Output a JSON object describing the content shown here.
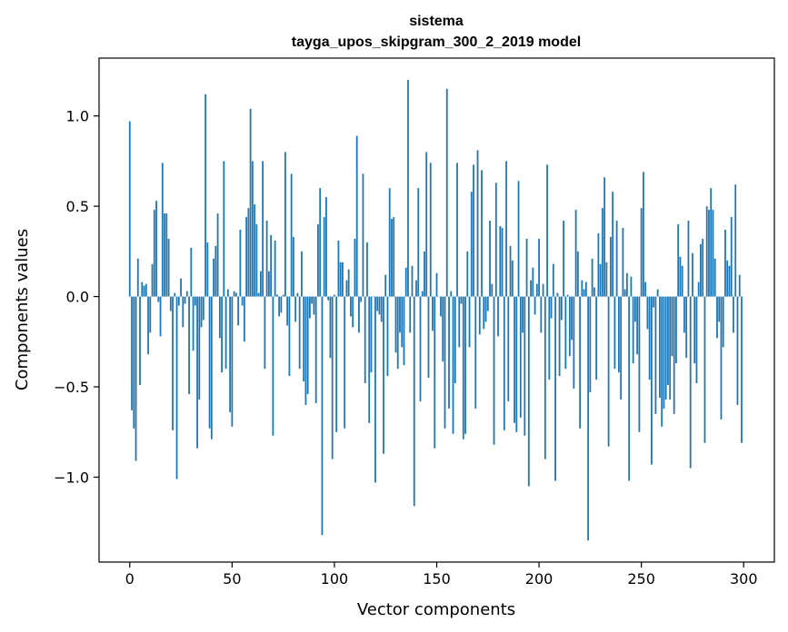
{
  "chart_data": {
    "type": "bar",
    "title": "sistema",
    "subtitle": "tayga_upos_skipgram_300_2_2019 model",
    "xlabel": "Vector components",
    "ylabel": "Components values",
    "xlim": [
      -15,
      315
    ],
    "ylim": [
      -1.47,
      1.32
    ],
    "xticks": [
      0,
      50,
      100,
      150,
      200,
      250,
      300
    ],
    "xtick_labels": [
      "0",
      "50",
      "100",
      "150",
      "200",
      "250",
      "300"
    ],
    "yticks": [
      -1.0,
      -0.5,
      0.0,
      0.5,
      1.0
    ],
    "ytick_labels": [
      "−1.0",
      "−0.5",
      "0.0",
      "0.5",
      "1.0"
    ],
    "bar_color": "#1f77b4",
    "grid": false,
    "n_components": 300,
    "values": [
      0.97,
      -0.63,
      -0.73,
      -0.91,
      0.21,
      -0.49,
      0.08,
      0.06,
      0.07,
      -0.32,
      -0.2,
      0.18,
      0.48,
      0.53,
      -0.03,
      -0.22,
      0.74,
      0.46,
      0.46,
      0.32,
      -0.08,
      -0.74,
      0.02,
      -1.01,
      -0.05,
      0.1,
      -0.17,
      -0.04,
      0.03,
      -0.54,
      0.27,
      -0.3,
      -0.05,
      -0.84,
      -0.57,
      -0.17,
      -0.13,
      1.12,
      0.3,
      -0.73,
      -0.79,
      0.21,
      0.28,
      0.46,
      -0.23,
      -0.42,
      0.75,
      -0.4,
      0.04,
      -0.64,
      -0.72,
      0.03,
      0.02,
      -0.16,
      0.37,
      -0.05,
      -0.25,
      0.44,
      0.49,
      1.04,
      0.75,
      0.51,
      0.4,
      0.02,
      0.14,
      0.75,
      -0.4,
      0.42,
      0.14,
      0.34,
      -0.77,
      0.31,
      0.01,
      -0.11,
      -0.09,
      0.01,
      0.8,
      -0.16,
      -0.44,
      0.68,
      0.33,
      -0.14,
      0.02,
      -0.4,
      0.25,
      -0.47,
      -0.6,
      -0.54,
      -0.12,
      -0.04,
      -0.1,
      -0.59,
      0.4,
      0.6,
      -1.32,
      0.44,
      0.55,
      -0.02,
      -0.34,
      -0.9,
      0.01,
      -0.75,
      0.31,
      0.19,
      0.19,
      -0.73,
      0.09,
      0.15,
      -0.11,
      -0.17,
      0.32,
      0.89,
      -0.2,
      -0.03,
      0.68,
      -0.48,
      0.3,
      -0.7,
      -0.42,
      0.0,
      -1.03,
      -0.08,
      -0.1,
      -0.14,
      -0.87,
      0.12,
      -0.44,
      0.6,
      0.43,
      0.44,
      -0.31,
      -0.4,
      -0.2,
      -0.28,
      -0.38,
      0.16,
      1.2,
      -0.2,
      0.17,
      -1.16,
      0.09,
      0.6,
      -0.58,
      0.03,
      0.25,
      0.8,
      -0.45,
      0.74,
      -0.19,
      -0.84,
      0.13,
      0.0,
      -0.11,
      -0.36,
      -0.73,
      1.15,
      -0.62,
      0.03,
      -0.76,
      -0.48,
      0.74,
      -0.28,
      -0.04,
      -0.79,
      -0.76,
      0.25,
      -0.28,
      0.58,
      0.73,
      -0.62,
      0.81,
      -0.21,
      0.7,
      -0.18,
      -0.14,
      -0.08,
      0.42,
      0.07,
      -0.82,
      0.63,
      -0.22,
      0.39,
      0.38,
      -0.74,
      0.75,
      -0.58,
      0.28,
      0.2,
      -0.7,
      -0.75,
      0.64,
      -0.67,
      -0.2,
      -0.77,
      0.32,
      -1.05,
      0.09,
      0.16,
      -0.1,
      0.07,
      0.32,
      -0.2,
      0.07,
      -0.9,
      0.73,
      -0.46,
      -0.12,
      0.18,
      -1.02,
      0.02,
      -0.44,
      -0.13,
      0.42,
      -0.4,
      0.01,
      -0.33,
      -0.24,
      -0.51,
      0.48,
      0.25,
      -0.73,
      0.09,
      0.04,
      0.08,
      -1.35,
      -0.53,
      0.21,
      0.05,
      -0.46,
      0.35,
      0.18,
      0.49,
      0.66,
      0.19,
      -0.83,
      0.33,
      0.58,
      -0.4,
      0.42,
      -0.42,
      -0.57,
      0.38,
      0.04,
      0.13,
      -1.02,
      0.11,
      -0.37,
      -0.14,
      -0.32,
      -0.75,
      0.49,
      0.69,
      0.08,
      -0.18,
      -0.46,
      -0.93,
      -0.06,
      -0.65,
      0.04,
      -0.56,
      -0.72,
      -0.62,
      -0.57,
      -0.49,
      -0.57,
      -0.33,
      -0.65,
      -0.37,
      0.4,
      0.22,
      0.17,
      -0.2,
      -0.34,
      0.42,
      -0.95,
      0.24,
      -0.37,
      -0.48,
      0.08,
      0.29,
      0.32,
      -0.81,
      0.5,
      0.48,
      0.6,
      0.48,
      0.21,
      -0.23,
      -0.14,
      -0.68,
      -0.28,
      0.37,
      0.2,
      0.17,
      0.44,
      -0.2,
      0.62,
      -0.6,
      0.12,
      -0.81
    ]
  }
}
